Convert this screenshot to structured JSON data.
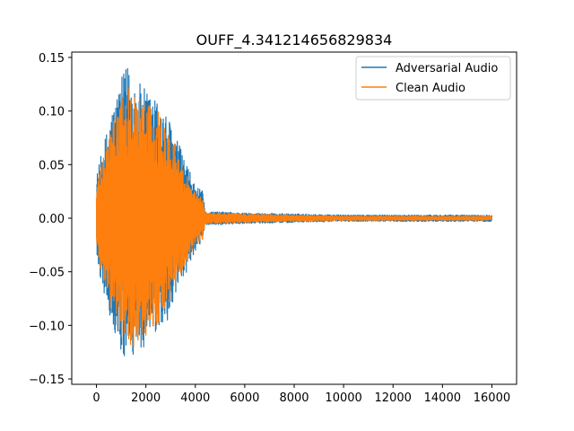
{
  "chart_data": {
    "type": "line",
    "title": "OUFF_4.341214656829834",
    "xlabel": "",
    "ylabel": "",
    "xlim": [
      -1000,
      17000
    ],
    "ylim": [
      -0.155,
      0.155
    ],
    "x_ticks": [
      0,
      2000,
      4000,
      6000,
      8000,
      10000,
      12000,
      14000,
      16000
    ],
    "x_tick_labels": [
      "0",
      "2000",
      "4000",
      "6000",
      "8000",
      "10000",
      "12000",
      "14000",
      "16000"
    ],
    "y_ticks": [
      0.15,
      0.1,
      0.05,
      0.0,
      -0.05,
      -0.1,
      -0.15
    ],
    "y_tick_labels": [
      "0.15",
      "0.10",
      "0.05",
      "0.00",
      "−0.05",
      "−0.10",
      "−0.15"
    ],
    "grid": false,
    "legend_position": "top-right",
    "n_samples": 16000,
    "series": [
      {
        "name": "Adversarial Audio",
        "color": "#1f77b4",
        "envelope": {
          "x": [
            0,
            200,
            600,
            1000,
            1300,
            1600,
            2000,
            2500,
            3000,
            3500,
            4000,
            4300,
            4400,
            5000,
            6000,
            8000,
            10000,
            12000,
            14000,
            16000
          ],
          "upper": [
            0.04,
            0.06,
            0.1,
            0.13,
            0.146,
            0.13,
            0.12,
            0.11,
            0.09,
            0.06,
            0.03,
            0.025,
            0.006,
            0.006,
            0.005,
            0.004,
            0.003,
            0.003,
            0.003,
            0.003
          ],
          "lower": [
            -0.04,
            -0.06,
            -0.1,
            -0.13,
            -0.138,
            -0.13,
            -0.12,
            -0.11,
            -0.09,
            -0.06,
            -0.03,
            -0.025,
            -0.006,
            -0.006,
            -0.005,
            -0.004,
            -0.003,
            -0.003,
            -0.003,
            -0.003
          ]
        }
      },
      {
        "name": "Clean Audio",
        "color": "#ff7f0e",
        "envelope": {
          "x": [
            0,
            200,
            600,
            1000,
            1300,
            1600,
            2000,
            2500,
            3000,
            3500,
            4000,
            4300,
            4400,
            5000,
            6000,
            8000,
            10000,
            12000,
            14000,
            16000
          ],
          "upper": [
            0.03,
            0.05,
            0.085,
            0.11,
            0.125,
            0.12,
            0.11,
            0.1,
            0.08,
            0.05,
            0.025,
            0.02,
            0.005,
            0.005,
            0.004,
            0.003,
            0.002,
            0.002,
            0.002,
            0.002
          ],
          "lower": [
            -0.03,
            -0.05,
            -0.085,
            -0.11,
            -0.125,
            -0.12,
            -0.11,
            -0.1,
            -0.08,
            -0.05,
            -0.025,
            -0.02,
            -0.005,
            -0.005,
            -0.004,
            -0.003,
            -0.002,
            -0.002,
            -0.002,
            -0.002
          ]
        }
      }
    ]
  }
}
